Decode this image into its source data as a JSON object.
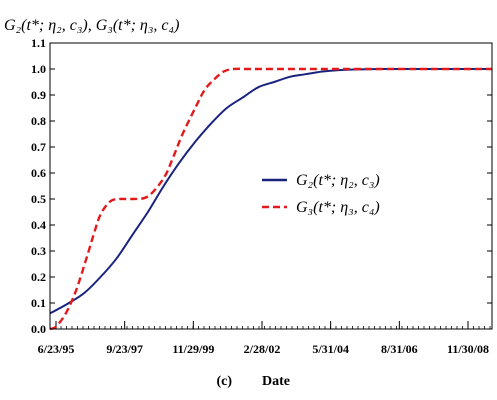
{
  "chart_data": {
    "type": "line",
    "ylabel": "G₂(t*; η₂, c₃), G₃(t*; η₃, c₄)",
    "xlabel": "Date",
    "panel_label": "(c)",
    "x_tick_labels": [
      "6/23/95",
      "9/23/97",
      "11/29/99",
      "2/28/02",
      "5/31/04",
      "8/31/06",
      "11/30/08"
    ],
    "x_range_years": [
      1995.4,
      2009.4
    ],
    "ylim": [
      0.0,
      1.1
    ],
    "y_ticks": [
      "0.0",
      "0.1",
      "0.2",
      "0.3",
      "0.4",
      "0.5",
      "0.6",
      "0.7",
      "0.8",
      "0.9",
      "1.0",
      "1.1"
    ],
    "legend_position": "right",
    "series": [
      {
        "name": "G₂(t*; η₂, c₃)",
        "color": "#1a237e",
        "dash": "solid",
        "x": [
          1995.4,
          1996.0,
          1996.5,
          1997.0,
          1997.5,
          1998.0,
          1998.5,
          1999.0,
          1999.5,
          2000.0,
          2000.5,
          2001.0,
          2001.5,
          2002.0,
          2002.5,
          2003.0,
          2003.5,
          2004.0,
          2004.5,
          2005.0,
          2006.0,
          2007.0,
          2008.0,
          2009.4
        ],
        "y": [
          0.06,
          0.1,
          0.14,
          0.2,
          0.27,
          0.36,
          0.45,
          0.55,
          0.64,
          0.72,
          0.79,
          0.85,
          0.89,
          0.93,
          0.95,
          0.97,
          0.98,
          0.99,
          0.995,
          0.998,
          1.0,
          1.0,
          1.0,
          1.0
        ]
      },
      {
        "name": "G₃(t*; η₃, c₄)",
        "color": "#e31a1c",
        "dash": "dashed",
        "x": [
          1995.4,
          1995.6,
          1995.9,
          1996.2,
          1996.5,
          1996.8,
          1997.0,
          1997.3,
          1997.6,
          1998.0,
          1998.5,
          1999.0,
          1999.3,
          1999.6,
          2000.0,
          2000.3,
          2000.6,
          2000.9,
          2001.2,
          2001.6,
          2002.0,
          2003.0,
          2005.0,
          2009.4
        ],
        "y": [
          0.0,
          0.01,
          0.06,
          0.14,
          0.25,
          0.37,
          0.44,
          0.49,
          0.5,
          0.5,
          0.51,
          0.58,
          0.66,
          0.75,
          0.85,
          0.92,
          0.96,
          0.99,
          1.0,
          1.0,
          1.0,
          1.0,
          1.0,
          1.0
        ]
      }
    ]
  }
}
